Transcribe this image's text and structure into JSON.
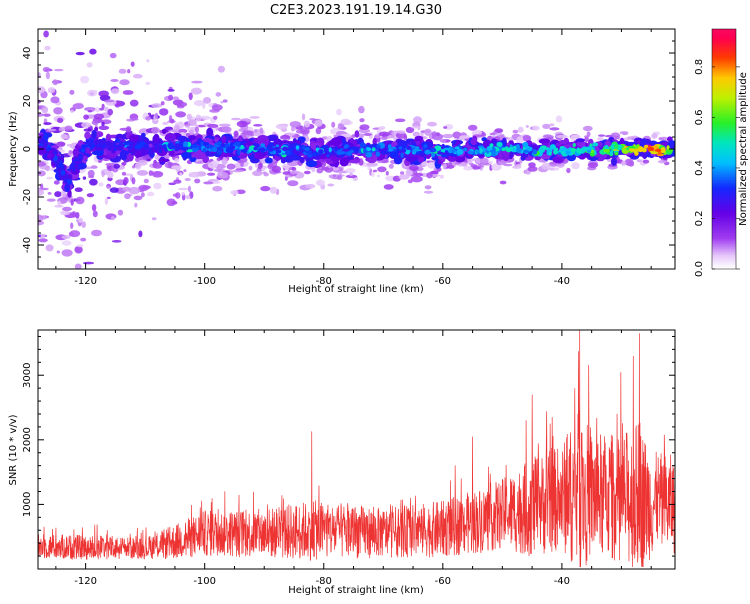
{
  "title": "C2E3.2023.191.19.14.G30",
  "chart_data": [
    {
      "type": "heatmap",
      "xlabel": "Height of straight line (km)",
      "ylabel": "Frequency (Hz)",
      "xlim": [
        -128,
        -21
      ],
      "ylim": [
        -50,
        50
      ],
      "x_ticks": [
        -120,
        -100,
        -80,
        -60,
        -40
      ],
      "x_tick_labels": [
        "-120",
        "-100",
        "-80",
        "-60",
        "-40"
      ],
      "y_ticks": [
        -40,
        -20,
        0,
        20,
        40
      ],
      "y_tick_labels": [
        "-40",
        "-20",
        "0",
        "20",
        "40"
      ],
      "colorbar": {
        "label": "Normalized spectral amplitude",
        "range": [
          0,
          0.95
        ],
        "ticks": [
          0.0,
          0.2,
          0.4,
          0.6,
          0.8
        ],
        "tick_labels": [
          "0.0",
          "0.2",
          "0.4",
          "0.6",
          "0.8"
        ],
        "colormap": "rainbow (white-violet-blue-cyan-green-yellow-red-magenta)"
      },
      "ridge": {
        "description": "dominant spectral ridge near 0 Hz",
        "points": [
          {
            "x": -127,
            "f": 4,
            "amp": 0.3
          },
          {
            "x": -126,
            "f": -1,
            "amp": 0.4
          },
          {
            "x": -125,
            "f": -4,
            "amp": 0.35
          },
          {
            "x": -124,
            "f": -9,
            "amp": 0.3
          },
          {
            "x": -123,
            "f": -16,
            "amp": 0.25
          },
          {
            "x": -120,
            "f": 2,
            "amp": 0.3
          },
          {
            "x": -110,
            "f": 1,
            "amp": 0.3
          },
          {
            "x": -100,
            "f": 1,
            "amp": 0.35
          },
          {
            "x": -90,
            "f": 0,
            "amp": 0.35
          },
          {
            "x": -80,
            "f": -1,
            "amp": 0.3
          },
          {
            "x": -70,
            "f": 0,
            "amp": 0.35
          },
          {
            "x": -60,
            "f": -1,
            "amp": 0.35
          },
          {
            "x": -50,
            "f": 0,
            "amp": 0.45
          },
          {
            "x": -40,
            "f": -1,
            "amp": 0.45
          },
          {
            "x": -30,
            "f": 0,
            "amp": 0.55
          },
          {
            "x": -25,
            "f": 0,
            "amp": 0.85
          },
          {
            "x": -22,
            "f": 0,
            "amp": 0.6
          }
        ]
      },
      "scatter_spread": {
        "description": "diffuse low-amplitude spread, broad near -115 to -105 km, narrowing toward -21 km",
        "envelope_x": [
          -128,
          -115,
          -105,
          -90,
          -70,
          -50,
          -30,
          -21
        ],
        "envelope_halfwidth_hz": [
          50,
          50,
          30,
          18,
          15,
          12,
          8,
          6
        ]
      }
    },
    {
      "type": "line",
      "xlabel": "Height of straight line (km)",
      "ylabel": "SNR (10 * v/v)",
      "xlim": [
        -128,
        -21
      ],
      "ylim": [
        0,
        3700
      ],
      "x_ticks": [
        -120,
        -100,
        -80,
        -60,
        -40
      ],
      "x_tick_labels": [
        "-120",
        "-100",
        "-80",
        "-60",
        "-40"
      ],
      "y_ticks": [
        1000,
        2000,
        3000
      ],
      "y_tick_labels": [
        "1000",
        "2000",
        "3000"
      ],
      "series": [
        {
          "color": "#ee3333",
          "envelope": {
            "x": [
              -128,
              -120,
              -110,
              -105,
              -100,
              -90,
              -82,
              -70,
              -60,
              -55,
              -50,
              -45,
              -40,
              -37,
              -35,
              -30,
              -27,
              -25,
              -21
            ],
            "mean": [
              350,
              330,
              320,
              420,
              550,
              550,
              600,
              560,
              620,
              720,
              850,
              950,
              1100,
              1200,
              1150,
              1100,
              1100,
              1000,
              1000
            ],
            "amplitude": [
              350,
              350,
              300,
              500,
              650,
              700,
              850,
              700,
              800,
              900,
              1000,
              1400,
              1500,
              2300,
              1800,
              1800,
              2200,
              1500,
              1400
            ]
          },
          "peaks": [
            {
              "x": -37,
              "y": 3700
            },
            {
              "x": -27,
              "y": 3650
            },
            {
              "x": -28,
              "y": 3300
            },
            {
              "x": -45,
              "y": 2700
            },
            {
              "x": -82,
              "y": 2130
            },
            {
              "x": -55,
              "y": 2050
            },
            {
              "x": -46,
              "y": 2300
            }
          ]
        }
      ]
    }
  ]
}
